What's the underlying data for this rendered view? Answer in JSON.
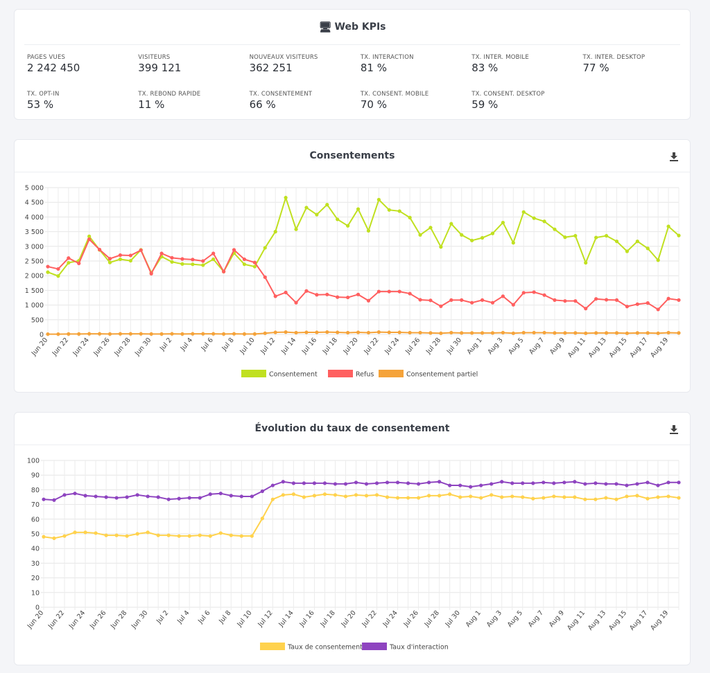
{
  "kpis": {
    "title": "Web KPIs",
    "icon": "monitor-icon",
    "items": [
      {
        "label": "PAGES VUES",
        "value": "2 242 450"
      },
      {
        "label": "VISITEURS",
        "value": "399 121"
      },
      {
        "label": "NOUVEAUX VISITEURS",
        "value": "362 251"
      },
      {
        "label": "TX. INTERACTION",
        "value": "81 %"
      },
      {
        "label": "TX. INTER. MOBILE",
        "value": "83 %"
      },
      {
        "label": "TX. INTER. DESKTOP",
        "value": "77 %"
      },
      {
        "label": "TX. OPT-IN",
        "value": "53 %"
      },
      {
        "label": "TX. REBOND RAPIDE",
        "value": "11 %"
      },
      {
        "label": "TX. CONSENTEMENT",
        "value": "66 %"
      },
      {
        "label": "TX. CONSENT. MOBILE",
        "value": "70 %"
      },
      {
        "label": "TX. CONSENT. DESKTOP",
        "value": "59 %"
      }
    ]
  },
  "chart_data": [
    {
      "type": "line",
      "title": "Consentements",
      "download_icon": "download-icon",
      "x": [
        "Jun 20",
        "Jun 21",
        "Jun 22",
        "Jun 23",
        "Jun 24",
        "Jun 25",
        "Jun 26",
        "Jun 27",
        "Jun 28",
        "Jun 29",
        "Jun 30",
        "Jul 1",
        "Jul 2",
        "Jul 3",
        "Jul 4",
        "Jul 5",
        "Jul 6",
        "Jul 7",
        "Jul 8",
        "Jul 9",
        "Jul 10",
        "Jul 11",
        "Jul 12",
        "Jul 13",
        "Jul 14",
        "Jul 15",
        "Jul 16",
        "Jul 17",
        "Jul 18",
        "Jul 19",
        "Jul 20",
        "Jul 21",
        "Jul 22",
        "Jul 23",
        "Jul 24",
        "Jul 25",
        "Jul 26",
        "Jul 27",
        "Jul 28",
        "Jul 29",
        "Jul 30",
        "Jul 31",
        "Aug 1",
        "Aug 2",
        "Aug 3",
        "Aug 4",
        "Aug 5",
        "Aug 6",
        "Aug 7",
        "Aug 8",
        "Aug 9",
        "Aug 10",
        "Aug 11",
        "Aug 12",
        "Aug 13",
        "Aug 14",
        "Aug 15",
        "Aug 16",
        "Aug 17",
        "Aug 18",
        "Aug 19",
        "Aug 20"
      ],
      "tick_labels": [
        "Jun 20",
        "Jun 22",
        "Jun 24",
        "Jun 26",
        "Jun 28",
        "Jun 30",
        "Jul 2",
        "Jul 4",
        "Jul 6",
        "Jul 8",
        "Jul 10",
        "Jul 12",
        "Jul 14",
        "Jul 16",
        "Jul 18",
        "Jul 20",
        "Jul 22",
        "Jul 24",
        "Jul 26",
        "Jul 28",
        "Jul 30",
        "Aug 1",
        "Aug 3",
        "Aug 5",
        "Aug 7",
        "Aug 9",
        "Aug 11",
        "Aug 13",
        "Aug 15",
        "Aug 17",
        "Aug 19"
      ],
      "ylim": [
        0,
        5000
      ],
      "y_ticks": [
        0,
        500,
        1000,
        1500,
        2000,
        2500,
        3000,
        3500,
        4000,
        4500,
        5000
      ],
      "y_tick_labels": [
        "0",
        "500",
        "1 000",
        "1 500",
        "2 000",
        "2 500",
        "3 000",
        "3 500",
        "4 000",
        "4 500",
        "5 000"
      ],
      "grid": true,
      "legend": "bottom",
      "series": [
        {
          "name": "Consentement",
          "color": "#c0e020",
          "values": [
            2120,
            1990,
            2440,
            2510,
            3340,
            2880,
            2450,
            2560,
            2510,
            2880,
            2100,
            2650,
            2470,
            2400,
            2390,
            2360,
            2560,
            2140,
            2770,
            2390,
            2310,
            2950,
            3500,
            4660,
            3580,
            4320,
            4080,
            4420,
            3920,
            3700,
            4270,
            3530,
            4590,
            4240,
            4200,
            3980,
            3390,
            3640,
            2980,
            3770,
            3390,
            3200,
            3290,
            3440,
            3810,
            3120,
            4170,
            3960,
            3850,
            3580,
            3310,
            3360,
            2440,
            3300,
            3360,
            3170,
            2830,
            3170,
            2930,
            2530,
            3680,
            3370
          ]
        },
        {
          "name": "Refus",
          "color": "#ff5f5f",
          "values": [
            2310,
            2230,
            2600,
            2420,
            3240,
            2890,
            2580,
            2700,
            2690,
            2870,
            2070,
            2760,
            2610,
            2570,
            2550,
            2500,
            2760,
            2140,
            2880,
            2560,
            2450,
            1950,
            1300,
            1430,
            1080,
            1480,
            1350,
            1360,
            1270,
            1260,
            1360,
            1150,
            1460,
            1460,
            1460,
            1390,
            1180,
            1160,
            960,
            1170,
            1170,
            1080,
            1170,
            1080,
            1300,
            1010,
            1420,
            1440,
            1340,
            1170,
            1140,
            1140,
            880,
            1210,
            1180,
            1170,
            950,
            1030,
            1070,
            850,
            1220,
            1170
          ]
        },
        {
          "name": "Consentement partiel",
          "color": "#f5a33a",
          "values": [
            10,
            10,
            15,
            15,
            20,
            20,
            15,
            20,
            20,
            20,
            15,
            15,
            20,
            15,
            20,
            20,
            20,
            15,
            20,
            15,
            15,
            40,
            70,
            80,
            60,
            70,
            70,
            80,
            70,
            60,
            70,
            60,
            80,
            70,
            70,
            60,
            60,
            50,
            40,
            60,
            50,
            50,
            50,
            50,
            60,
            40,
            60,
            60,
            60,
            50,
            50,
            50,
            40,
            50,
            50,
            50,
            40,
            50,
            50,
            40,
            60,
            50
          ]
        }
      ]
    },
    {
      "type": "line",
      "title": "Évolution du taux de consentement",
      "download_icon": "download-icon",
      "x": [
        "Jun 20",
        "Jun 21",
        "Jun 22",
        "Jun 23",
        "Jun 24",
        "Jun 25",
        "Jun 26",
        "Jun 27",
        "Jun 28",
        "Jun 29",
        "Jun 30",
        "Jul 1",
        "Jul 2",
        "Jul 3",
        "Jul 4",
        "Jul 5",
        "Jul 6",
        "Jul 7",
        "Jul 8",
        "Jul 9",
        "Jul 10",
        "Jul 11",
        "Jul 12",
        "Jul 13",
        "Jul 14",
        "Jul 15",
        "Jul 16",
        "Jul 17",
        "Jul 18",
        "Jul 19",
        "Jul 20",
        "Jul 21",
        "Jul 22",
        "Jul 23",
        "Jul 24",
        "Jul 25",
        "Jul 26",
        "Jul 27",
        "Jul 28",
        "Jul 29",
        "Jul 30",
        "Jul 31",
        "Aug 1",
        "Aug 2",
        "Aug 3",
        "Aug 4",
        "Aug 5",
        "Aug 6",
        "Aug 7",
        "Aug 8",
        "Aug 9",
        "Aug 10",
        "Aug 11",
        "Aug 12",
        "Aug 13",
        "Aug 14",
        "Aug 15",
        "Aug 16",
        "Aug 17",
        "Aug 18",
        "Aug 19",
        "Aug 20"
      ],
      "tick_labels": [
        "Jun 20",
        "Jun 22",
        "Jun 24",
        "Jun 26",
        "Jun 28",
        "Jun 30",
        "Jul 2",
        "Jul 4",
        "Jul 6",
        "Jul 8",
        "Jul 10",
        "Jul 12",
        "Jul 14",
        "Jul 16",
        "Jul 18",
        "Jul 20",
        "Jul 22",
        "Jul 24",
        "Jul 26",
        "Jul 28",
        "Jul 30",
        "Aug 1",
        "Aug 3",
        "Aug 5",
        "Aug 7",
        "Aug 9",
        "Aug 11",
        "Aug 13",
        "Aug 15",
        "Aug 17",
        "Aug 19"
      ],
      "ylim": [
        0,
        100
      ],
      "y_ticks": [
        0,
        10,
        20,
        30,
        40,
        50,
        60,
        70,
        80,
        90,
        100
      ],
      "y_tick_labels": [
        "0",
        "10",
        "20",
        "30",
        "40",
        "50",
        "60",
        "70",
        "80",
        "90",
        "100"
      ],
      "grid": true,
      "legend": "bottom",
      "series": [
        {
          "name": "Taux de consentement",
          "color": "#ffd24d",
          "values": [
            48,
            47,
            48.5,
            51,
            51,
            50.5,
            49,
            49,
            48.5,
            50,
            51,
            49,
            49,
            48.5,
            48.5,
            49,
            48.5,
            50.5,
            49,
            48.5,
            48.5,
            60.5,
            73.5,
            76.5,
            77,
            75,
            76,
            77,
            76.5,
            75.5,
            76.5,
            76,
            76.5,
            75,
            74.5,
            74.5,
            74.5,
            76,
            76,
            77,
            75,
            75.5,
            74.5,
            76.5,
            75,
            75.5,
            75,
            74,
            74.5,
            75.5,
            75,
            75,
            73.5,
            73.5,
            74.5,
            73.5,
            75.5,
            76,
            74,
            75,
            75.5,
            74.5
          ]
        },
        {
          "name": "Taux d'interaction",
          "color": "#8e44c0",
          "values": [
            73.5,
            73,
            76.5,
            77.5,
            76,
            75.5,
            75,
            74.5,
            75,
            76.5,
            75.5,
            75,
            73.5,
            74,
            74.5,
            74.5,
            77,
            77.5,
            76,
            75.5,
            75.5,
            79,
            83,
            85.5,
            84.5,
            84.5,
            84.5,
            84.5,
            84,
            84,
            85,
            84,
            84.5,
            85,
            85,
            84.5,
            84,
            85,
            85.5,
            83,
            83,
            82,
            83,
            84,
            85.5,
            84.5,
            84.5,
            84.5,
            85,
            84.5,
            85,
            85.5,
            84,
            84.5,
            84,
            84,
            83,
            84,
            85,
            83,
            85,
            85
          ]
        }
      ]
    }
  ]
}
